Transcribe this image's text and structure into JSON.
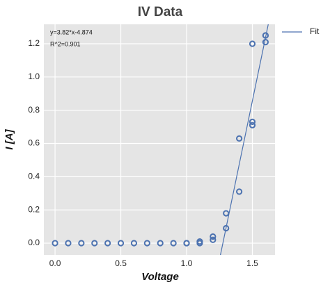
{
  "chart_data": {
    "type": "scatter",
    "title": "IV Data",
    "xlabel": "Voltage",
    "ylabel": "I [A]",
    "annotations": [
      "y=3.82*x-4.874",
      "R^2=0.901"
    ],
    "xlim": [
      -0.085,
      1.672
    ],
    "ylim": [
      -0.071,
      1.317
    ],
    "xticks": [
      {
        "value": 0,
        "label": "0.0"
      },
      0.5,
      {
        "value": 1,
        "label": "1.0"
      },
      1.5
    ],
    "yticks": [
      {
        "value": 0,
        "label": "0.0"
      },
      0.2,
      0.4,
      0.6,
      0.8,
      {
        "value": 1,
        "label": "1.0"
      },
      1.2
    ],
    "grid": true,
    "legend": "outside upper right",
    "series": [
      {
        "color": "#4c72b0",
        "x": [
          0,
          0.1,
          0.2,
          0.3,
          0.4,
          0.5,
          0.6,
          0.7,
          0.8,
          0.9,
          1.0,
          1.0,
          1.1,
          1.1,
          1.2,
          1.2,
          1.3,
          1.3,
          1.4,
          1.4,
          1.5,
          1.5,
          1.5,
          1.6,
          1.6,
          1.6
        ],
        "values": [
          0,
          0,
          0,
          0,
          0,
          0,
          0,
          0,
          0,
          0,
          0,
          0,
          0,
          0.01,
          0.02,
          0.04,
          0.09,
          0.18,
          0.31,
          0.63,
          1.2,
          0.73,
          0.71,
          1.25,
          1.25,
          1.21
        ]
      },
      {
        "name": "Fit",
        "type": "line",
        "color": "#4c72b0",
        "x": [
          1.257,
          1.621
        ],
        "values": [
          -0.072,
          1.318
        ]
      }
    ]
  }
}
